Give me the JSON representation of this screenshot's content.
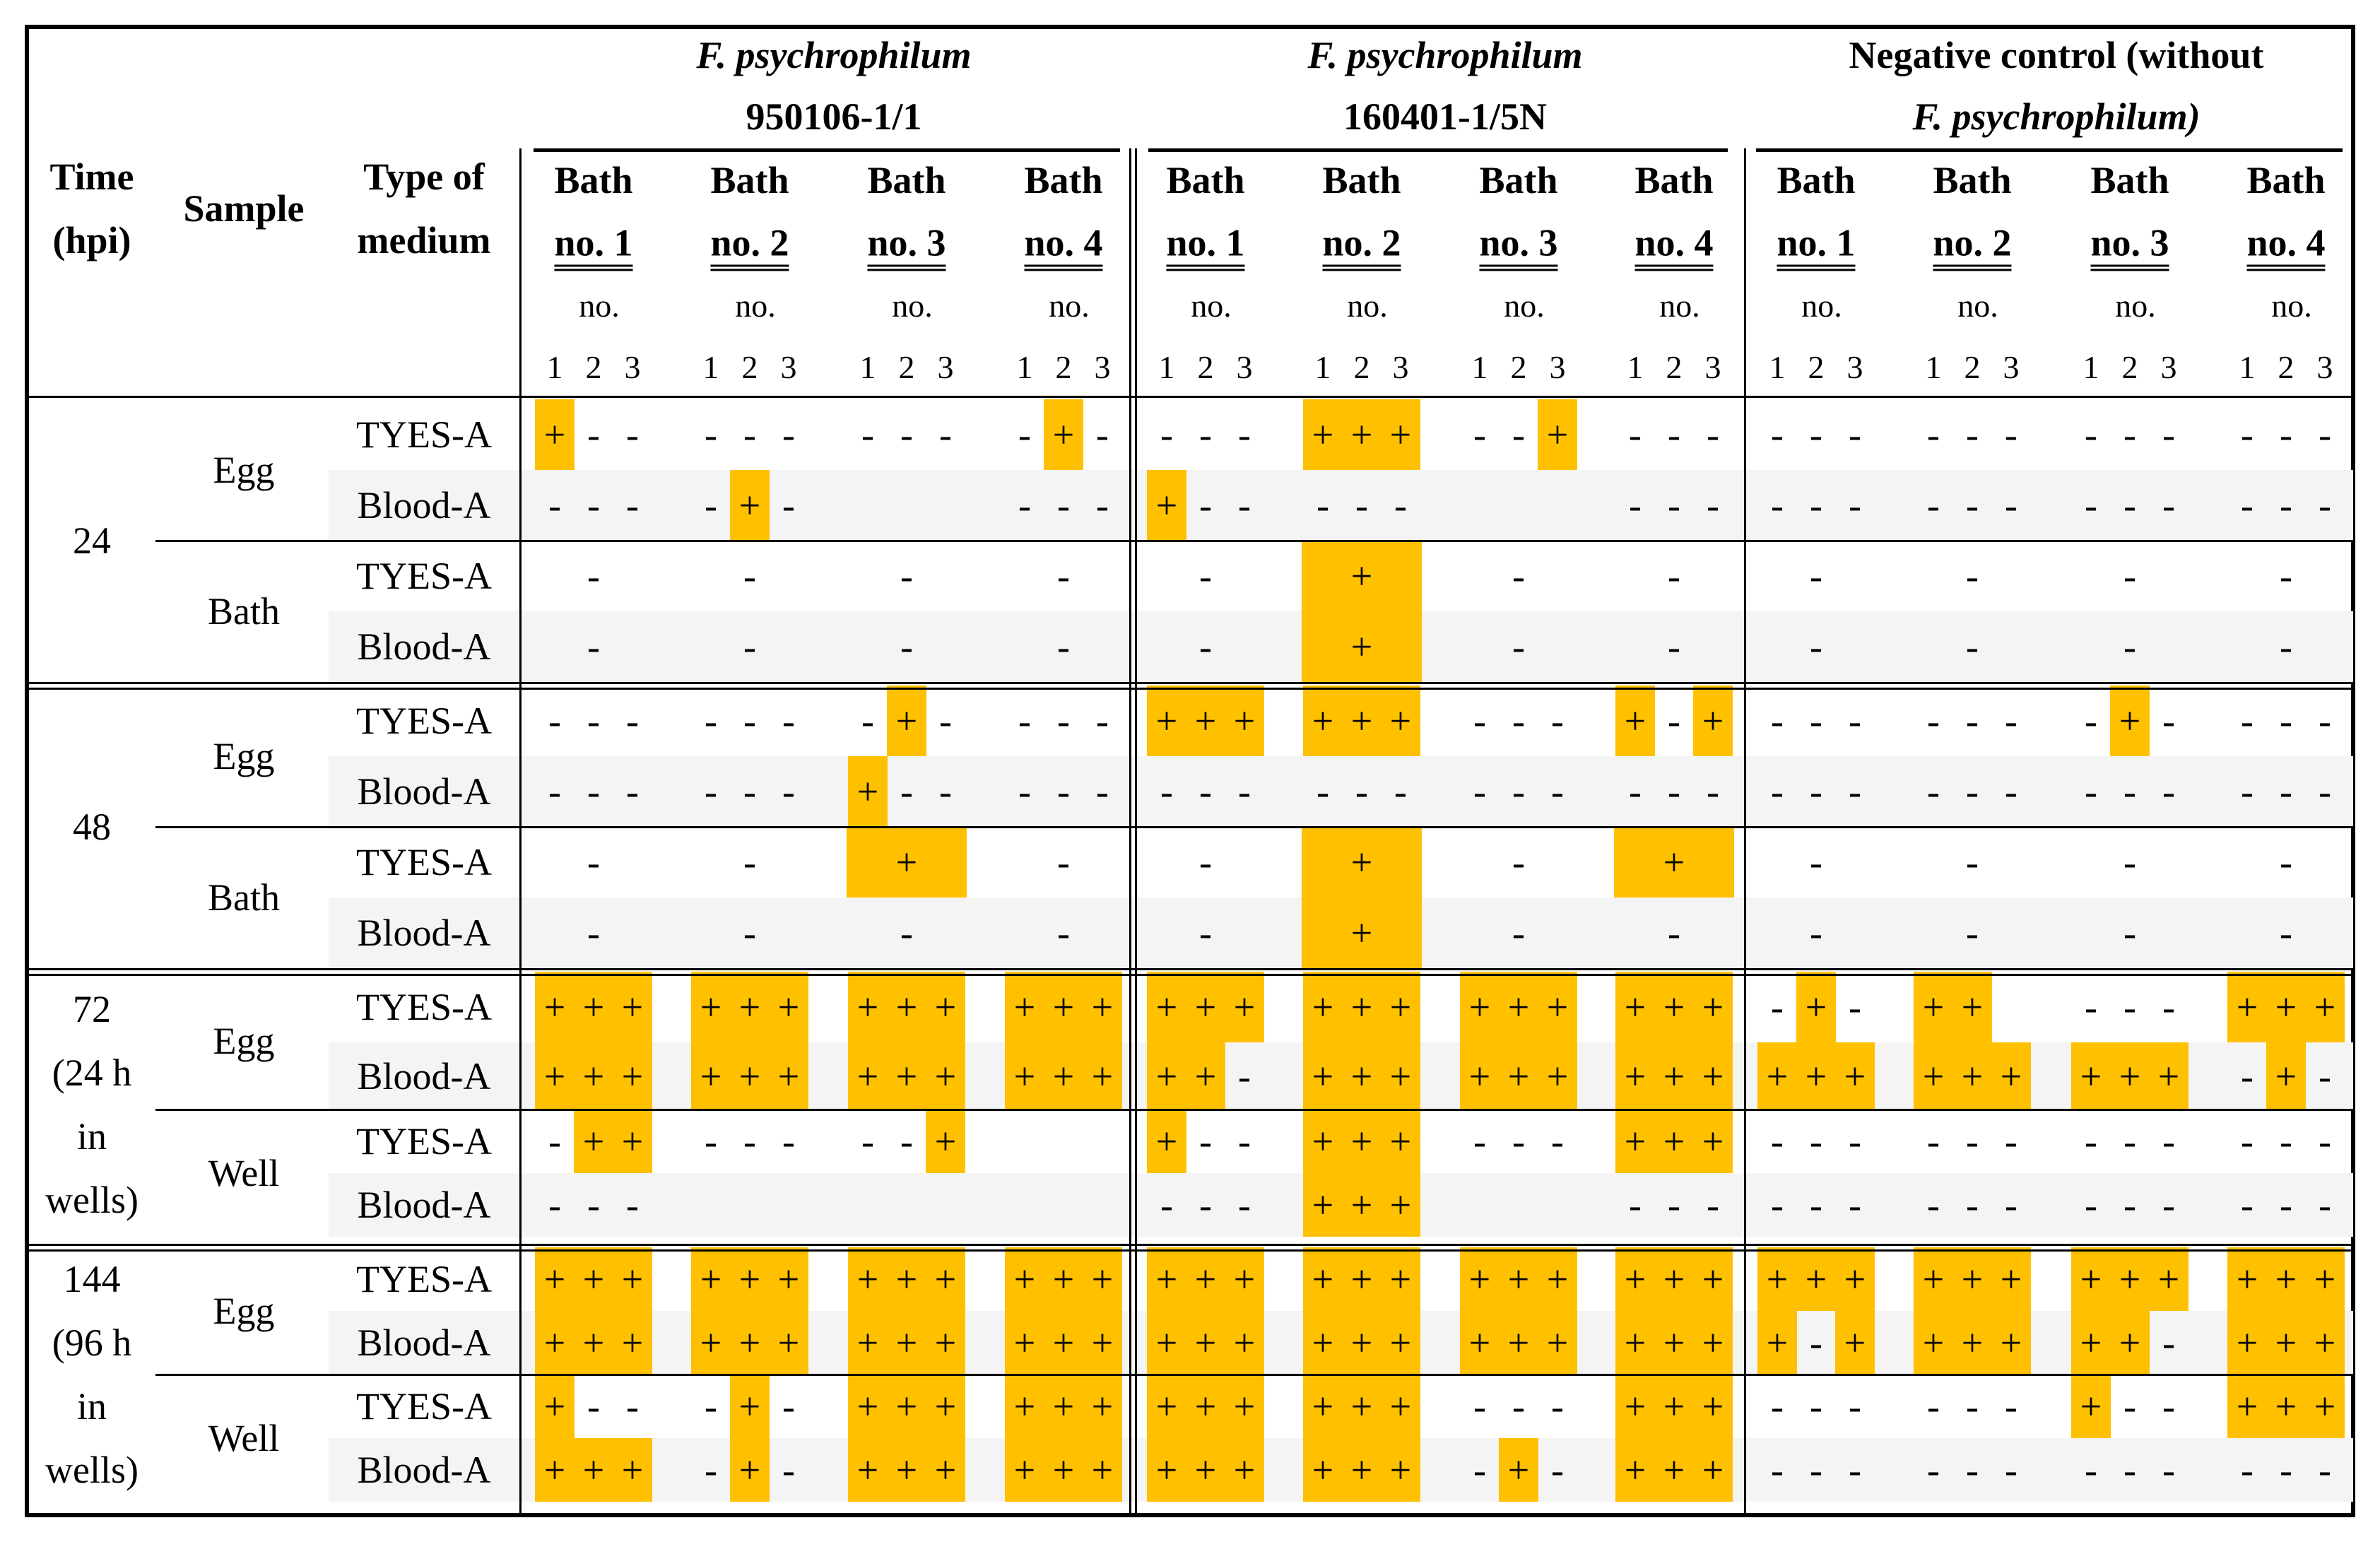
{
  "header": {
    "time": [
      "Time",
      "(hpi)"
    ],
    "sample": "Sample",
    "medium": [
      "Type of",
      "medium"
    ],
    "groups": [
      {
        "line1": "F. psychrophilum",
        "line2": "950106-1/1",
        "line1_italic": true,
        "line2_italic": false
      },
      {
        "line1": "F. psychrophilum",
        "line2": "160401-1/5N",
        "line1_italic": true,
        "line2_italic": false
      },
      {
        "line1": "Negative control (without",
        "line2": "F. psychrophilum)",
        "line1_italic": false,
        "line2_italic": true
      }
    ],
    "bath_top": "Bath",
    "bath_nos": [
      "no. 1",
      "no. 2",
      "no. 3",
      "no. 4"
    ],
    "sub_no": "no.",
    "sub_indices": [
      "1",
      "2",
      "3"
    ]
  },
  "sections": [
    {
      "time": [
        "24"
      ],
      "groups": [
        {
          "sample": "Egg",
          "rows": [
            {
              "medium": "TYES-A",
              "kind": "trip",
              "values": [
                "+--",
                "---",
                "---",
                "-+-",
                "---",
                "+++",
                "--+",
                "---",
                "---",
                "---",
                "---",
                "---"
              ]
            },
            {
              "medium": "Blood-A",
              "kind": "trip",
              "values": [
                "---",
                "-+-",
                "",
                "---",
                "+--",
                "---",
                "",
                "---",
                "---",
                "---",
                "---",
                "---"
              ]
            }
          ]
        },
        {
          "sample": "Bath",
          "rows": [
            {
              "medium": "TYES-A",
              "kind": "single",
              "values": [
                "-",
                "-",
                "-",
                "-",
                "-",
                "+",
                "-",
                "-",
                "-",
                "-",
                "-",
                "-"
              ]
            },
            {
              "medium": "Blood-A",
              "kind": "single",
              "values": [
                "-",
                "-",
                "-",
                "-",
                "-",
                "+",
                "-",
                "-",
                "-",
                "-",
                "-",
                "-"
              ]
            }
          ]
        }
      ]
    },
    {
      "time": [
        "48"
      ],
      "groups": [
        {
          "sample": "Egg",
          "rows": [
            {
              "medium": "TYES-A",
              "kind": "trip",
              "values": [
                "---",
                "---",
                "-+-",
                "---",
                "+++",
                "+++",
                "---",
                "+-+",
                "---",
                "---",
                "-+-",
                "---"
              ]
            },
            {
              "medium": "Blood-A",
              "kind": "trip",
              "values": [
                "---",
                "---",
                "+--",
                "---",
                "---",
                "---",
                "---",
                "---",
                "---",
                "---",
                "---",
                "---"
              ]
            }
          ]
        },
        {
          "sample": "Bath",
          "rows": [
            {
              "medium": "TYES-A",
              "kind": "single",
              "values": [
                "-",
                "-",
                "+",
                "-",
                "-",
                "+",
                "-",
                "+",
                "-",
                "-",
                "-",
                "-"
              ]
            },
            {
              "medium": "Blood-A",
              "kind": "single",
              "values": [
                "-",
                "-",
                "-",
                "-",
                "-",
                "+",
                "-",
                "-",
                "-",
                "-",
                "-",
                "-"
              ]
            }
          ]
        }
      ]
    },
    {
      "time": [
        "72",
        "(24 h",
        "in",
        "wells)"
      ],
      "groups": [
        {
          "sample": "Egg",
          "rows": [
            {
              "medium": "TYES-A",
              "kind": "trip",
              "values": [
                "+++",
                "+++",
                "+++",
                "+++",
                "+++",
                "+++",
                "+++",
                "+++",
                "-+-",
                "++",
                "---",
                "+++"
              ]
            },
            {
              "medium": "Blood-A",
              "kind": "trip",
              "values": [
                "+++",
                "+++",
                "+++",
                "+++",
                "++-",
                "+++",
                "+++",
                "+++",
                "+++",
                "+++",
                "+++",
                "-+-"
              ]
            }
          ]
        },
        {
          "sample": "Well",
          "rows": [
            {
              "medium": "TYES-A",
              "kind": "trip",
              "values": [
                "-++",
                "---",
                "--+",
                "",
                "+--",
                "+++",
                "---",
                "+++",
                "---",
                "---",
                "---",
                "---"
              ]
            },
            {
              "medium": "Blood-A",
              "kind": "trip",
              "values": [
                "---",
                "",
                "",
                "",
                "---",
                "+++",
                "",
                "---",
                "---",
                "---",
                "---",
                "---"
              ]
            }
          ]
        }
      ]
    },
    {
      "time": [
        "144",
        "(96 h",
        "in",
        "wells)"
      ],
      "groups": [
        {
          "sample": "Egg",
          "rows": [
            {
              "medium": "TYES-A",
              "kind": "trip",
              "values": [
                "+++",
                "+++",
                "+++",
                "+++",
                "+++",
                "+++",
                "+++",
                "+++",
                "+++",
                "+++",
                "+++",
                "+++"
              ]
            },
            {
              "medium": "Blood-A",
              "kind": "trip",
              "values": [
                "+++",
                "+++",
                "+++",
                "+++",
                "+++",
                "+++",
                "+++",
                "+++",
                "+-+",
                "+++",
                "++-",
                "+++"
              ]
            }
          ]
        },
        {
          "sample": "Well",
          "rows": [
            {
              "medium": "TYES-A",
              "kind": "trip",
              "values": [
                "+--",
                "-+-",
                "+++",
                "+++",
                "+++",
                "+++",
                "---",
                "+++",
                "---",
                "---",
                "+--",
                "+++"
              ]
            },
            {
              "medium": "Blood-A",
              "kind": "trip",
              "values": [
                "+++",
                "-+-",
                "+++",
                "+++",
                "+++",
                "+++",
                "-+-",
                "+++",
                "---",
                "---",
                "---",
                "---"
              ]
            }
          ]
        }
      ]
    }
  ],
  "colors": {
    "positive": "#ffc000",
    "stripe": "#f4f4f4",
    "rule": "#000000"
  }
}
